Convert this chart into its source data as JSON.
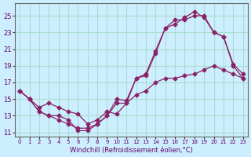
{
  "xlabel": "Windchill (Refroidissement éolien,°C)",
  "ylabel": "",
  "bg_color": "#cceeff",
  "grid_color": "#aaddcc",
  "line_color": "#882266",
  "line_color2": "#882266",
  "xlim": [
    -0.5,
    23.5
  ],
  "ylim": [
    10.5,
    26.5
  ],
  "xticks": [
    0,
    1,
    2,
    3,
    4,
    5,
    6,
    7,
    8,
    9,
    10,
    11,
    12,
    13,
    14,
    15,
    16,
    17,
    18,
    19,
    20,
    21,
    22,
    23
  ],
  "yticks": [
    11,
    13,
    15,
    17,
    19,
    21,
    23,
    25
  ],
  "series1_x": [
    0,
    1,
    2,
    3,
    4,
    5,
    6,
    7,
    8,
    9,
    10,
    11,
    12,
    13,
    14,
    15,
    16,
    17,
    18,
    19,
    20,
    21,
    22,
    23
  ],
  "series1_y": [
    16.0,
    15.0,
    13.5,
    13.0,
    13.0,
    12.5,
    11.2,
    11.2,
    12.0,
    13.0,
    14.5,
    14.5,
    17.5,
    18.0,
    20.8,
    23.5,
    24.5,
    24.5,
    25.0,
    25.0,
    23.0,
    22.5,
    19.2,
    18.0
  ],
  "series2_x": [
    0,
    1,
    2,
    3,
    4,
    5,
    6,
    7,
    8,
    9,
    10,
    11,
    12,
    13,
    14,
    15,
    16,
    17,
    18,
    19,
    20,
    21,
    22,
    23
  ],
  "series2_y": [
    16.0,
    15.0,
    13.5,
    13.0,
    12.5,
    12.0,
    11.5,
    11.5,
    12.0,
    13.0,
    15.0,
    14.8,
    17.5,
    17.8,
    20.5,
    23.5,
    24.0,
    24.8,
    25.5,
    24.8,
    23.0,
    22.5,
    19.0,
    17.5
  ],
  "series3_x": [
    0,
    1,
    2,
    3,
    4,
    5,
    6,
    7,
    8,
    9,
    10,
    11,
    12,
    13,
    14,
    15,
    16,
    17,
    18,
    19,
    20,
    21,
    22,
    23
  ],
  "series3_y": [
    16.0,
    15.0,
    14.0,
    14.5,
    14.0,
    13.5,
    13.2,
    12.0,
    12.5,
    13.5,
    13.2,
    14.5,
    15.5,
    16.0,
    17.0,
    17.5,
    17.5,
    17.8,
    18.0,
    18.5,
    19.0,
    18.5,
    18.0,
    17.5
  ]
}
